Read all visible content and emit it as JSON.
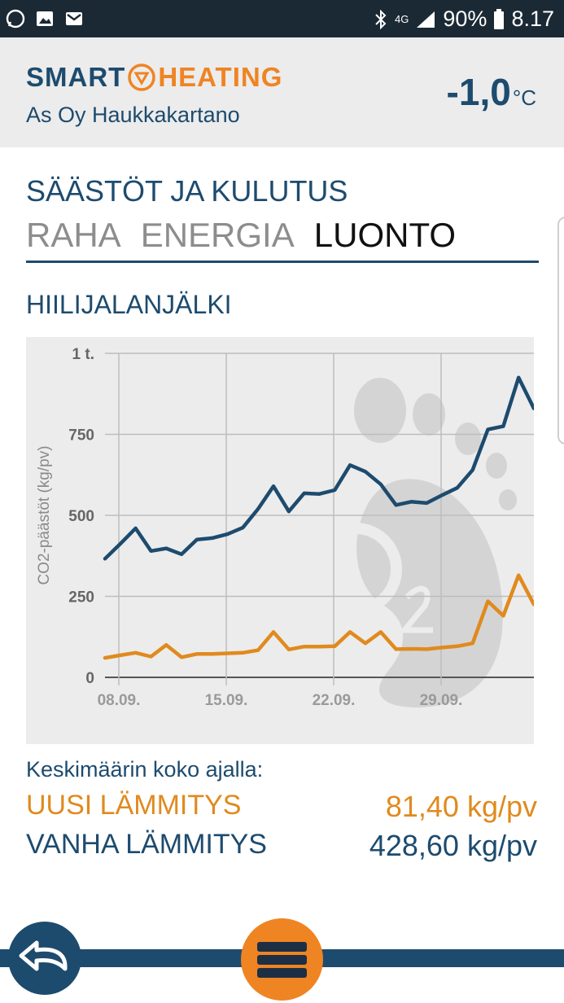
{
  "status_bar": {
    "battery": "90%",
    "time": "8.17",
    "network": "4G"
  },
  "header": {
    "brand_smart": "SMART",
    "brand_heating": "HEATING",
    "subtitle": "As Oy Haukkakartano",
    "temperature": "-1,0",
    "temperature_unit": "°C"
  },
  "section": {
    "title": "SÄÄSTÖT JA KULUTUS"
  },
  "tabs": [
    {
      "label": "RAHA"
    },
    {
      "label": "ENERGIA"
    },
    {
      "label": "LUONTO",
      "active": true
    }
  ],
  "chart_title": "HIILIJALANJÄLKI",
  "chart_data": {
    "type": "line",
    "ylabel": "CO2-päästöt (kg/pv)",
    "ylim": [
      0,
      1000
    ],
    "y_ticks": [
      "0",
      "250",
      "500",
      "750",
      "1 t."
    ],
    "x_ticks": [
      "08.09.",
      "15.09.",
      "22.09.",
      "29.09."
    ],
    "grid": true,
    "colors": {
      "old": "#1d4b6e",
      "new": "#e08a1e"
    },
    "series": [
      {
        "key": "old",
        "values": [
          366,
          412,
          460,
          390,
          398,
          380,
          425,
          430,
          442,
          462,
          520,
          590,
          512,
          568,
          566,
          578,
          655,
          635,
          596,
          532,
          542,
          538,
          562,
          585,
          640,
          765,
          775,
          925,
          830
        ]
      },
      {
        "key": "new",
        "values": [
          60,
          68,
          76,
          64,
          100,
          62,
          72,
          72,
          74,
          76,
          84,
          140,
          86,
          95,
          95,
          96,
          140,
          105,
          140,
          87,
          88,
          87,
          92,
          96,
          105,
          235,
          190,
          315,
          225
        ]
      }
    ]
  },
  "averages": {
    "label": "Keskimäärin koko ajalla:",
    "new_label": "UUSI LÄMMITYS",
    "new_value": "81,40 kg/pv",
    "old_label": "VANHA LÄMMITYS",
    "old_value": "428,60 kg/pv"
  },
  "icons": {
    "back": "back-arrow-icon",
    "menu": "menu-icon"
  }
}
